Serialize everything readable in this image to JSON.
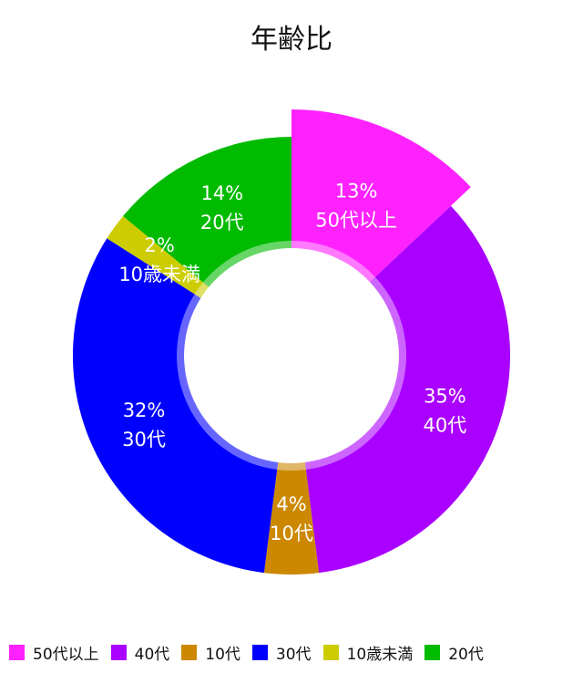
{
  "chart_data": {
    "type": "pie",
    "title": "年齢比",
    "donut": true,
    "exploded_slice": "50代以上",
    "legend_position": "bottom",
    "slices": [
      {
        "label": "50代以上",
        "value": 13,
        "display": "13%",
        "color": "#ff22ff"
      },
      {
        "label": "40代",
        "value": 35,
        "display": "35%",
        "color": "#aa00ff"
      },
      {
        "label": "10代",
        "value": 4,
        "display": "4%",
        "color": "#cc8800"
      },
      {
        "label": "30代",
        "value": 32,
        "display": "32%",
        "color": "#0000ff"
      },
      {
        "label": "10歳未満",
        "value": 2,
        "display": "2%",
        "color": "#cccc00"
      },
      {
        "label": "20代",
        "value": 14,
        "display": "14%",
        "color": "#00bb00"
      }
    ]
  }
}
